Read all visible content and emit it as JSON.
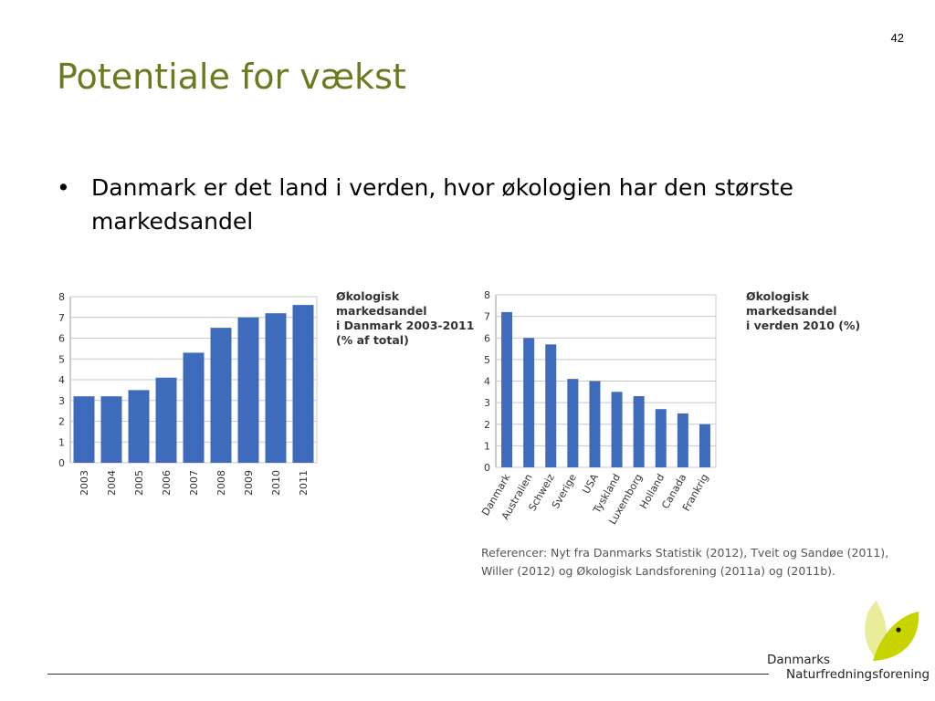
{
  "page_number": "42",
  "title": "Potentiale for vækst",
  "bullet": {
    "symbol": "•",
    "text": "Danmark er det land i verden, hvor økologien har den største markedsandel"
  },
  "references": "Referencer: Nyt fra Danmarks Statistik (2012), Tveit og Sandøe (2011), Willer (2012) og Økologisk Landsforening (2011a) og (2011b).",
  "logo": {
    "line1": "Danmarks",
    "line2": "Naturfredningsforening",
    "colors": [
      "#c8d400",
      "#e9ec9a"
    ]
  },
  "colors": {
    "title": "#6b7a1f",
    "bar": "#3f6bbd",
    "grid": "#c8c8c8"
  },
  "chart_data": [
    {
      "type": "bar",
      "title": "Økologisk markedsandel i Danmark 2003-2011 (% af total)",
      "title_lines": [
        "Økologisk markedsandel",
        "i Danmark 2003-2011",
        "(% af total)"
      ],
      "categories": [
        "2003",
        "2004",
        "2005",
        "2006",
        "2007",
        "2008",
        "2009",
        "2010",
        "2011"
      ],
      "values": [
        3.2,
        3.2,
        3.5,
        4.1,
        5.3,
        6.5,
        7.0,
        7.2,
        7.6
      ],
      "yticks": [
        "0",
        "1",
        "2",
        "3",
        "4",
        "5",
        "6",
        "7",
        "8"
      ],
      "ylim": [
        0,
        8
      ],
      "grid": true
    },
    {
      "type": "bar",
      "title": "Økologisk markedsandel i verden 2010 (%)",
      "title_lines": [
        "Økologisk markedsandel",
        "i verden 2010 (%)"
      ],
      "categories": [
        "Danmark",
        "Australien",
        "Schweiz",
        "Sverige",
        "USA",
        "Tyskland",
        "Luxemborg",
        "Holland",
        "Canada",
        "Frankrig"
      ],
      "values": [
        7.2,
        6.0,
        5.7,
        4.1,
        4.0,
        3.5,
        3.3,
        2.7,
        2.5,
        2.0
      ],
      "yticks": [
        "0",
        "1",
        "2",
        "3",
        "4",
        "5",
        "6",
        "7",
        "8"
      ],
      "ylim": [
        0,
        8
      ],
      "grid": true
    }
  ]
}
